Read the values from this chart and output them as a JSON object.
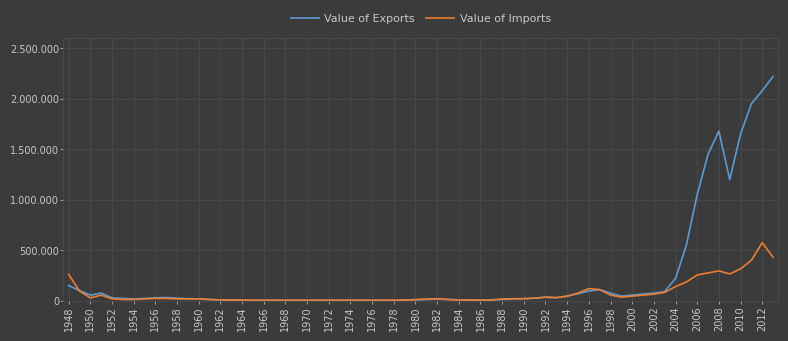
{
  "years": [
    1948,
    1949,
    1950,
    1951,
    1952,
    1953,
    1954,
    1955,
    1956,
    1957,
    1958,
    1959,
    1960,
    1961,
    1962,
    1963,
    1964,
    1965,
    1966,
    1967,
    1968,
    1969,
    1970,
    1971,
    1972,
    1973,
    1974,
    1975,
    1976,
    1977,
    1978,
    1979,
    1980,
    1981,
    1982,
    1983,
    1984,
    1985,
    1986,
    1987,
    1988,
    1989,
    1990,
    1991,
    1992,
    1993,
    1994,
    1995,
    1996,
    1997,
    1998,
    1999,
    2000,
    2001,
    2002,
    2003,
    2004,
    2005,
    2006,
    2007,
    2008,
    2009,
    2010,
    2011,
    2012,
    2013
  ],
  "exports": [
    150000,
    100000,
    55000,
    75000,
    28000,
    22000,
    18000,
    22000,
    28000,
    32000,
    25000,
    20000,
    18000,
    12000,
    8000,
    7000,
    7000,
    4000,
    4000,
    4000,
    4000,
    4000,
    4000,
    4000,
    4000,
    4000,
    4000,
    4000,
    4000,
    4000,
    4000,
    6000,
    8000,
    12000,
    16000,
    12000,
    8000,
    6000,
    6000,
    8000,
    12000,
    16000,
    20000,
    25000,
    35000,
    30000,
    45000,
    70000,
    95000,
    110000,
    75000,
    45000,
    55000,
    65000,
    75000,
    90000,
    220000,
    550000,
    1050000,
    1450000,
    1680000,
    1200000,
    1650000,
    1950000,
    2080000,
    2220000
  ],
  "imports": [
    260000,
    95000,
    28000,
    55000,
    18000,
    12000,
    12000,
    18000,
    22000,
    22000,
    18000,
    18000,
    18000,
    12000,
    8000,
    6000,
    6000,
    4000,
    4000,
    4000,
    4000,
    4000,
    4000,
    4000,
    4000,
    4000,
    4000,
    4000,
    4000,
    4000,
    4000,
    6000,
    12000,
    16000,
    20000,
    12000,
    8000,
    6000,
    6000,
    8000,
    16000,
    20000,
    20000,
    25000,
    35000,
    30000,
    45000,
    75000,
    120000,
    110000,
    55000,
    35000,
    45000,
    55000,
    65000,
    82000,
    140000,
    185000,
    255000,
    275000,
    295000,
    265000,
    315000,
    400000,
    575000,
    430000
  ],
  "exports_color": "#5b9bd5",
  "imports_color": "#ed7d31",
  "bg_color": "#3b3b3b",
  "grid_color": "#4f4f4f",
  "text_color": "#c8c8c8",
  "legend_label_exports": "Value of Exports",
  "legend_label_imports": "Value of Imports",
  "yticks": [
    0,
    500000,
    1000000,
    1500000,
    2000000,
    2500000
  ],
  "ytick_labels": [
    "0",
    "500.000",
    "1.000.000",
    "1.500.000",
    "2.000.000",
    "2.500.000"
  ],
  "ylim": [
    0,
    2600000
  ],
  "line_width": 1.2
}
